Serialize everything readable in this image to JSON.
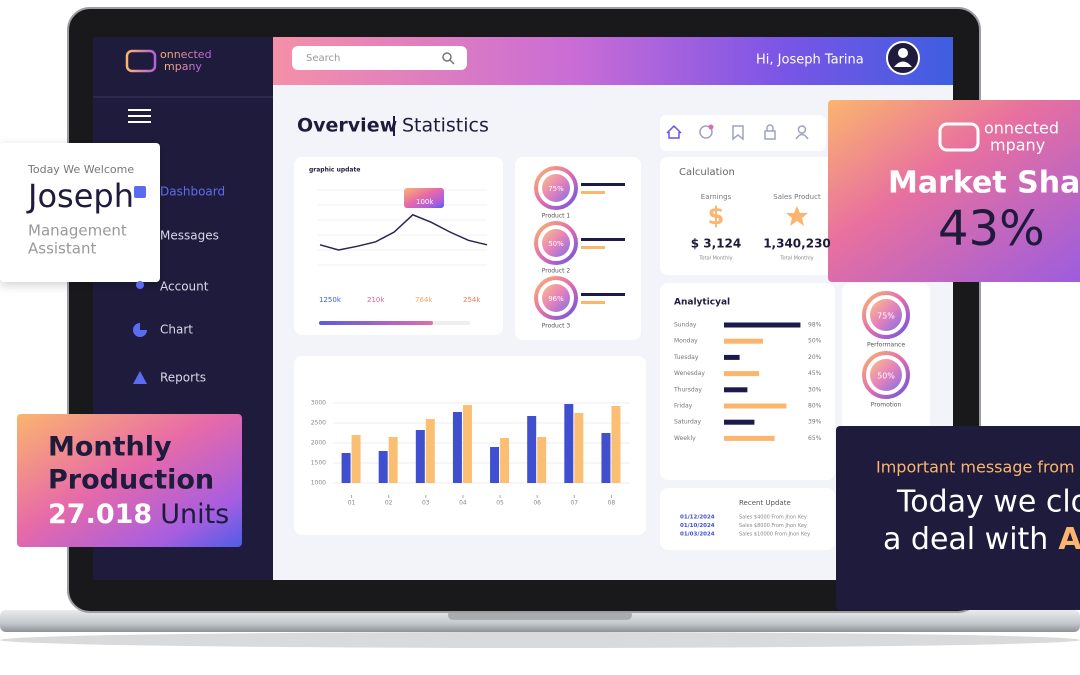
{
  "brand": {
    "line1": "onnected",
    "line2": "mpany"
  },
  "header": {
    "search_placeholder": "Search",
    "greeting": "Hi, Joseph Tarina"
  },
  "nav": [
    "Dashboard",
    "Messages",
    "Account",
    "Chart",
    "Reports"
  ],
  "page_title": {
    "main": "Overview",
    "sub": "Statistics"
  },
  "graphic_update": {
    "title": "graphic update",
    "line": {
      "type": "line",
      "values": [
        27,
        20,
        25,
        31,
        44,
        67,
        57,
        44,
        33,
        27
      ],
      "ylim": [
        0,
        100
      ],
      "color": "#2b2452"
    },
    "tooltip": "100k",
    "stats": [
      {
        "value": "1250k",
        "color": "#3f5be0"
      },
      {
        "value": "210k",
        "color": "#e0609a"
      },
      {
        "value": "764k",
        "color": "#f5a66a"
      },
      {
        "value": "254k",
        "color": "#ef7a5a"
      }
    ]
  },
  "products": [
    {
      "label": "75%",
      "name": "Product 1"
    },
    {
      "label": "50%",
      "name": "Product 2"
    },
    {
      "label": "96%",
      "name": "Product 3"
    }
  ],
  "bar_chart": {
    "type": "bar",
    "categories": [
      "01",
      "02",
      "03",
      "04",
      "05",
      "06",
      "07",
      "08"
    ],
    "ylim": [
      1000,
      3000
    ],
    "yticks": [
      1000,
      1500,
      2000,
      2500,
      3000
    ],
    "grid": true,
    "series": [
      {
        "color": "#3f4fd0",
        "values": [
          1750,
          1800,
          2325,
          2775,
          1900,
          2675,
          2975,
          2250
        ]
      },
      {
        "color": "#fbbf74",
        "values": [
          2200,
          2150,
          2600,
          2950,
          2125,
          2150,
          2750,
          2925
        ]
      }
    ]
  },
  "calculation": {
    "title": "Calculation",
    "items": [
      {
        "label": "Earnings",
        "icon": "$",
        "value": "$ 3,124",
        "note": "Total Monthly"
      },
      {
        "label": "Sales Product",
        "value": "1,340,230",
        "note": "Total Monthly"
      }
    ]
  },
  "analytics": {
    "title": "Analyticyal",
    "rows": [
      {
        "day": "Sunday",
        "value": 98,
        "label": "98%",
        "color": "#1c1a4a"
      },
      {
        "day": "Monday",
        "value": 50,
        "label": "50%",
        "color": "#fbb56e"
      },
      {
        "day": "Tuesday",
        "value": 20,
        "label": "20%",
        "color": "#1c1a4a"
      },
      {
        "day": "Wenesday",
        "value": 45,
        "label": "45%",
        "color": "#fbb56e"
      },
      {
        "day": "Thursday",
        "value": 30,
        "label": "30%",
        "color": "#1c1a4a"
      },
      {
        "day": "Friday",
        "value": 80,
        "label": "80%",
        "color": "#fbb56e"
      },
      {
        "day": "Saturday",
        "value": 39,
        "label": "39%",
        "color": "#1c1a4a"
      },
      {
        "day": "Weekly",
        "value": 65,
        "label": "65%",
        "color": "#fbb56e"
      }
    ]
  },
  "recent_update": {
    "title": "Recent Update",
    "rows": [
      {
        "date": "01/12/2024",
        "text": "Sales $4000 From Jhon Key"
      },
      {
        "date": "01/10/2024",
        "text": "Sales $8000 From Jhon Key"
      },
      {
        "date": "01/03/2024",
        "text": "Sales $10000 From Jhon Key"
      }
    ]
  },
  "side_stats": [
    {
      "label": "75%",
      "name": "Performance"
    },
    {
      "label": "50%",
      "name": "Promotion"
    }
  ],
  "welcome": {
    "intro": "Today We Welcome",
    "name": "Joseph",
    "role_line1": "Management",
    "role_line2": "Assistant"
  },
  "production": {
    "line1": "Monthly",
    "line2": "Production",
    "amount": "27.018",
    "unit": "Units"
  },
  "market_share": {
    "title": "Market Shar",
    "value": "43%"
  },
  "message": {
    "intro": "Important message from",
    "line1": "Today we clo",
    "line2": "a deal with",
    "highlight": "A"
  }
}
